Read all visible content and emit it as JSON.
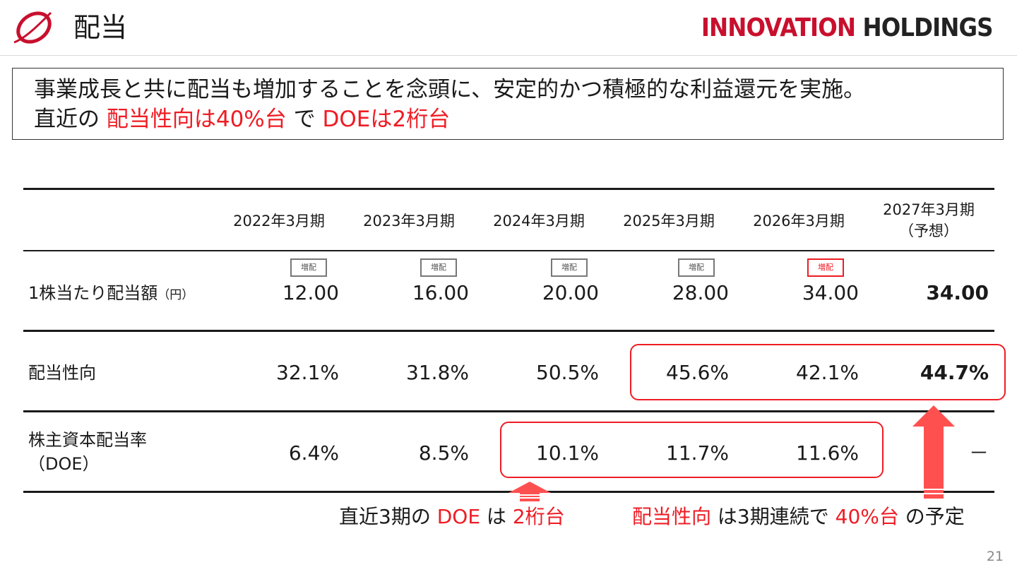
{
  "header": {
    "title": "配当",
    "brand_red": "INNOVATION",
    "brand_dark": "HOLDINGS",
    "logo_icon": "swoosh-ring-logo"
  },
  "message": {
    "line1": "事業成長と共に配当も増加することを念頭に、安定的かつ積極的な利益還元を実施。",
    "line2_a": "直近の ",
    "line2_b": "配当性向は40%台",
    "line2_c": " で ",
    "line2_d": "DOEは2桁台"
  },
  "table": {
    "columns": [
      "2022年3月期",
      "2023年3月期",
      "2024年3月期",
      "2025年3月期",
      "2026年3月期"
    ],
    "last_column_l1": "2027年3月期",
    "last_column_l2": "（予想）",
    "badge_label": "増配",
    "rows": {
      "dps": {
        "label": "1株当たり配当額",
        "unit": "（円）",
        "values": [
          "12.00",
          "16.00",
          "20.00",
          "28.00",
          "34.00",
          "34.00"
        ]
      },
      "payout": {
        "label": "配当性向",
        "values": [
          "32.1%",
          "31.8%",
          "50.5%",
          "45.6%",
          "42.1%",
          "44.7%"
        ]
      },
      "doe": {
        "label_l1": "株主資本配当率",
        "label_l2": "（DOE）",
        "values": [
          "6.4%",
          "8.5%",
          "10.1%",
          "11.7%",
          "11.6%",
          "－"
        ]
      }
    }
  },
  "notes": {
    "doe_a": "直近3期の ",
    "doe_b": "DOE",
    "doe_c": " は ",
    "doe_d": "2桁台",
    "payout_a": "配当性向",
    "payout_b": " は3期連続で ",
    "payout_c": "40%台",
    "payout_d": " の予定"
  },
  "page_number": "21",
  "colors": {
    "accent_red": "#ee1c24",
    "brand_red": "#c8102e",
    "arrow_red": "#ff5050"
  }
}
